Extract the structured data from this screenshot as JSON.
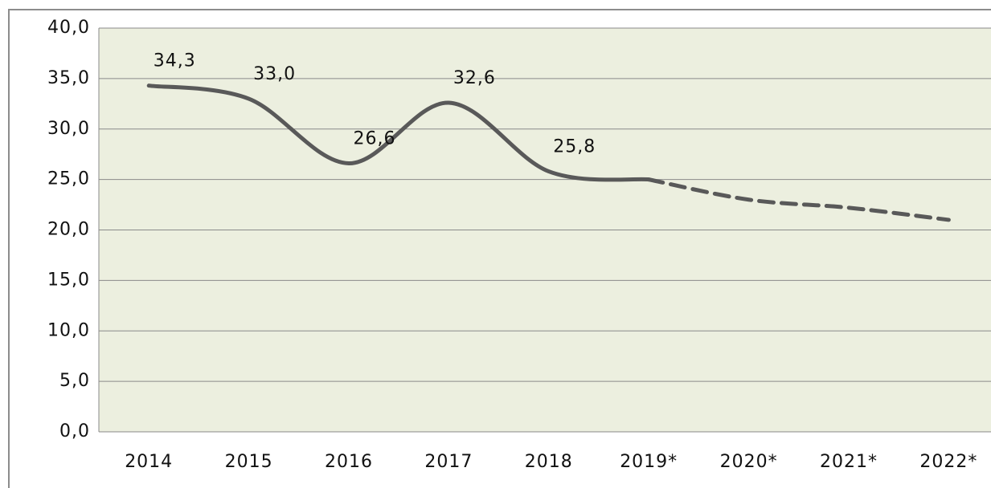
{
  "chart_data": {
    "type": "line",
    "categories": [
      "2014",
      "2015",
      "2016",
      "2017",
      "2018",
      "2019*",
      "2020*",
      "2021*",
      "2022*"
    ],
    "series": [
      {
        "color": "#595959",
        "line_style": "solid",
        "values": [
          34.3,
          33.0,
          26.6,
          32.6,
          25.8,
          25.0,
          null,
          null,
          null
        ],
        "value_labels": [
          "34,3",
          "33,0",
          "26,6",
          "32,6",
          "25,8",
          null,
          null,
          null,
          null
        ]
      },
      {
        "color": "#595959",
        "line_style": "dashed",
        "values": [
          null,
          null,
          null,
          null,
          null,
          25.0,
          23.0,
          22.2,
          21.0
        ]
      }
    ],
    "ylim": [
      0,
      40
    ],
    "yticks": [
      {
        "value": 0,
        "label": "0,0"
      },
      {
        "value": 5,
        "label": "5,0"
      },
      {
        "value": 10,
        "label": "10,0"
      },
      {
        "value": 15,
        "label": "15,0"
      },
      {
        "value": 20,
        "label": "20,0"
      },
      {
        "value": 25,
        "label": "25,0"
      },
      {
        "value": 30,
        "label": "30,0"
      },
      {
        "value": 35,
        "label": "35,0"
      },
      {
        "value": 40,
        "label": "40,0"
      }
    ],
    "grid": true,
    "smooth": true,
    "plot_background": "#ecefdf"
  }
}
